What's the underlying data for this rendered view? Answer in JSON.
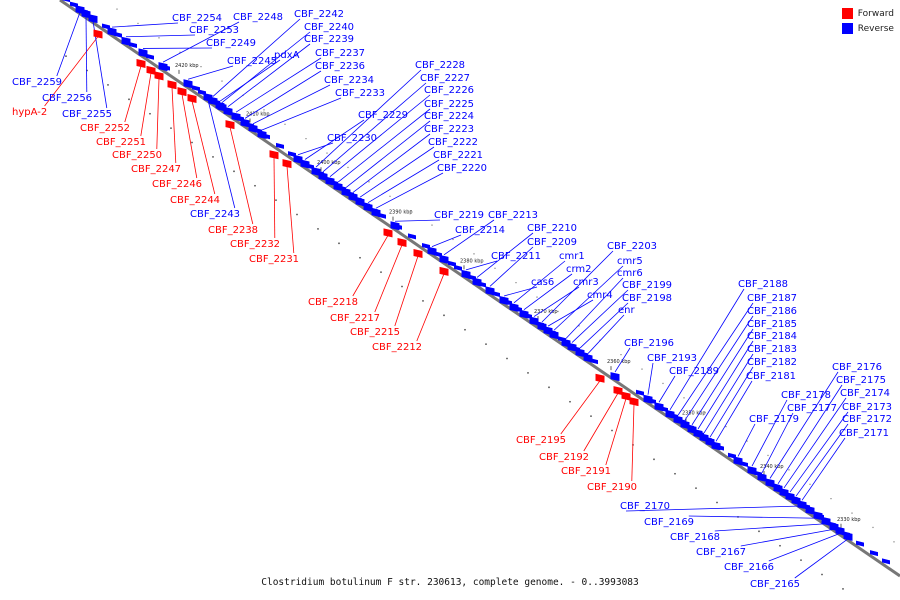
{
  "legend": {
    "forward_label": "Forward",
    "reverse_label": "Reverse",
    "forward_color": "#ff0000",
    "reverse_color": "#0000ff"
  },
  "caption": "Clostridium botulinum F str. 230613, complete genome. - 0..3993083",
  "scale_ticks": [
    "2420 kbp",
    "2410 kbp",
    "2400 kbp",
    "2390 kbp",
    "2380 kbp",
    "2370 kbp",
    "2360 kbp",
    "2350 kbp",
    "2340 kbp",
    "2330 kbp"
  ],
  "genes": [
    {
      "name": "hypA-2",
      "strand": "forward"
    },
    {
      "name": "CBF_2259",
      "strand": "reverse"
    },
    {
      "name": "CBF_2256",
      "strand": "reverse"
    },
    {
      "name": "CBF_2255",
      "strand": "reverse"
    },
    {
      "name": "CBF_2254",
      "strand": "reverse"
    },
    {
      "name": "CBF_2253",
      "strand": "reverse"
    },
    {
      "name": "CBF_2252",
      "strand": "forward"
    },
    {
      "name": "CBF_2251",
      "strand": "forward"
    },
    {
      "name": "CBF_2250",
      "strand": "forward"
    },
    {
      "name": "CBF_2249",
      "strand": "reverse"
    },
    {
      "name": "CBF_2248",
      "strand": "reverse"
    },
    {
      "name": "CBF_2247",
      "strand": "forward"
    },
    {
      "name": "CBF_2246",
      "strand": "forward"
    },
    {
      "name": "CBF_2245",
      "strand": "reverse"
    },
    {
      "name": "CBF_2244",
      "strand": "forward"
    },
    {
      "name": "CBF_2243",
      "strand": "reverse"
    },
    {
      "name": "CBF_2242",
      "strand": "reverse"
    },
    {
      "name": "CBF_2240",
      "strand": "reverse"
    },
    {
      "name": "CBF_2239",
      "strand": "reverse"
    },
    {
      "name": "pdxA",
      "strand": "reverse"
    },
    {
      "name": "CBF_2238",
      "strand": "forward"
    },
    {
      "name": "CBF_2237",
      "strand": "reverse"
    },
    {
      "name": "CBF_2236",
      "strand": "reverse"
    },
    {
      "name": "CBF_2234",
      "strand": "reverse"
    },
    {
      "name": "CBF_2233",
      "strand": "reverse"
    },
    {
      "name": "CBF_2232",
      "strand": "forward"
    },
    {
      "name": "CBF_2231",
      "strand": "forward"
    },
    {
      "name": "CBF_2230",
      "strand": "reverse"
    },
    {
      "name": "CBF_2229",
      "strand": "reverse"
    },
    {
      "name": "CBF_2228",
      "strand": "reverse"
    },
    {
      "name": "CBF_2227",
      "strand": "reverse"
    },
    {
      "name": "CBF_2226",
      "strand": "reverse"
    },
    {
      "name": "CBF_2225",
      "strand": "reverse"
    },
    {
      "name": "CBF_2224",
      "strand": "reverse"
    },
    {
      "name": "CBF_2223",
      "strand": "reverse"
    },
    {
      "name": "CBF_2222",
      "strand": "reverse"
    },
    {
      "name": "CBF_2221",
      "strand": "reverse"
    },
    {
      "name": "CBF_2220",
      "strand": "reverse"
    },
    {
      "name": "CBF_2219",
      "strand": "reverse"
    },
    {
      "name": "CBF_2218",
      "strand": "forward"
    },
    {
      "name": "CBF_2217",
      "strand": "forward"
    },
    {
      "name": "CBF_2215",
      "strand": "forward"
    },
    {
      "name": "CBF_2214",
      "strand": "reverse"
    },
    {
      "name": "CBF_2213",
      "strand": "reverse"
    },
    {
      "name": "CBF_2212",
      "strand": "forward"
    },
    {
      "name": "CBF_2211",
      "strand": "reverse"
    },
    {
      "name": "CBF_2210",
      "strand": "reverse"
    },
    {
      "name": "CBF_2209",
      "strand": "reverse"
    },
    {
      "name": "cas6",
      "strand": "reverse"
    },
    {
      "name": "cmr1",
      "strand": "reverse"
    },
    {
      "name": "crm2",
      "strand": "reverse"
    },
    {
      "name": "cmr3",
      "strand": "reverse"
    },
    {
      "name": "cmr4",
      "strand": "reverse"
    },
    {
      "name": "CBF_2203",
      "strand": "reverse"
    },
    {
      "name": "cmr5",
      "strand": "reverse"
    },
    {
      "name": "cmr6",
      "strand": "reverse"
    },
    {
      "name": "CBF_2199",
      "strand": "reverse"
    },
    {
      "name": "CBF_2198",
      "strand": "reverse"
    },
    {
      "name": "enr",
      "strand": "reverse"
    },
    {
      "name": "CBF_2196",
      "strand": "reverse"
    },
    {
      "name": "CBF_2195",
      "strand": "forward"
    },
    {
      "name": "CBF_2193",
      "strand": "reverse"
    },
    {
      "name": "CBF_2192",
      "strand": "forward"
    },
    {
      "name": "CBF_2191",
      "strand": "forward"
    },
    {
      "name": "CBF_2190",
      "strand": "forward"
    },
    {
      "name": "CBF_2189",
      "strand": "reverse"
    },
    {
      "name": "CBF_2188",
      "strand": "reverse"
    },
    {
      "name": "CBF_2187",
      "strand": "reverse"
    },
    {
      "name": "CBF_2186",
      "strand": "reverse"
    },
    {
      "name": "CBF_2185",
      "strand": "reverse"
    },
    {
      "name": "CBF_2184",
      "strand": "reverse"
    },
    {
      "name": "CBF_2183",
      "strand": "reverse"
    },
    {
      "name": "CBF_2182",
      "strand": "reverse"
    },
    {
      "name": "CBF_2181",
      "strand": "reverse"
    },
    {
      "name": "CBF_2179",
      "strand": "reverse"
    },
    {
      "name": "CBF_2178",
      "strand": "reverse"
    },
    {
      "name": "CBF_2177",
      "strand": "reverse"
    },
    {
      "name": "CBF_2176",
      "strand": "reverse"
    },
    {
      "name": "CBF_2175",
      "strand": "reverse"
    },
    {
      "name": "CBF_2174",
      "strand": "reverse"
    },
    {
      "name": "CBF_2173",
      "strand": "reverse"
    },
    {
      "name": "CBF_2172",
      "strand": "reverse"
    },
    {
      "name": "CBF_2171",
      "strand": "reverse"
    },
    {
      "name": "CBF_2170",
      "strand": "reverse"
    },
    {
      "name": "CBF_2169",
      "strand": "reverse"
    },
    {
      "name": "CBF_2168",
      "strand": "reverse"
    },
    {
      "name": "CBF_2167",
      "strand": "reverse"
    },
    {
      "name": "CBF_2166",
      "strand": "reverse"
    },
    {
      "name": "CBF_2165",
      "strand": "reverse"
    }
  ]
}
